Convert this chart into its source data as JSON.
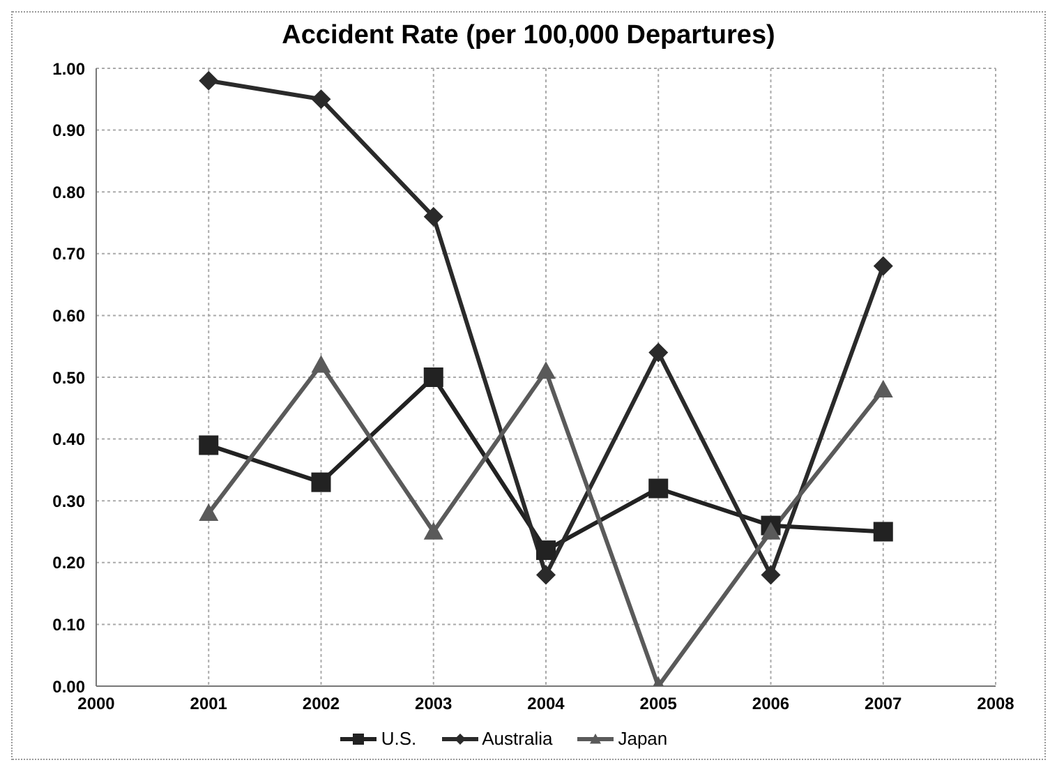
{
  "chart_data": {
    "type": "line",
    "title": "Accident Rate (per 100,000 Departures)",
    "x": [
      2001,
      2002,
      2003,
      2004,
      2005,
      2006,
      2007
    ],
    "series": [
      {
        "name": "U.S.",
        "color": "#222222",
        "marker": "square",
        "values": [
          0.39,
          0.33,
          0.5,
          0.22,
          0.32,
          0.26,
          0.25
        ]
      },
      {
        "name": "Australia",
        "color": "#2a2a2a",
        "marker": "diamond",
        "values": [
          0.98,
          0.95,
          0.76,
          0.18,
          0.54,
          0.18,
          0.68
        ]
      },
      {
        "name": "Japan",
        "color": "#5a5a5a",
        "marker": "triangle",
        "values": [
          0.28,
          0.52,
          0.25,
          0.51,
          0.0,
          0.25,
          0.48
        ]
      }
    ],
    "xlim": [
      2000,
      2008
    ],
    "xticks": [
      2000,
      2001,
      2002,
      2003,
      2004,
      2005,
      2006,
      2007,
      2008
    ],
    "ylim": [
      0,
      1
    ],
    "yticks": [
      {
        "value": 0,
        "label": "0.00"
      },
      {
        "value": 0.1,
        "label": "0.10"
      },
      {
        "value": 0.2,
        "label": "0.20"
      },
      {
        "value": 0.3,
        "label": "0.30"
      },
      {
        "value": 0.4,
        "label": "0.40"
      },
      {
        "value": 0.5,
        "label": "0.50"
      },
      {
        "value": 0.6,
        "label": "0.60"
      },
      {
        "value": 0.7,
        "label": "0.70"
      },
      {
        "value": 0.8,
        "label": "0.80"
      },
      {
        "value": 0.9,
        "label": "0.90"
      },
      {
        "value": 1,
        "label": "1.00"
      }
    ],
    "grid": true,
    "legend": "bottom",
    "line_style": "solid"
  }
}
